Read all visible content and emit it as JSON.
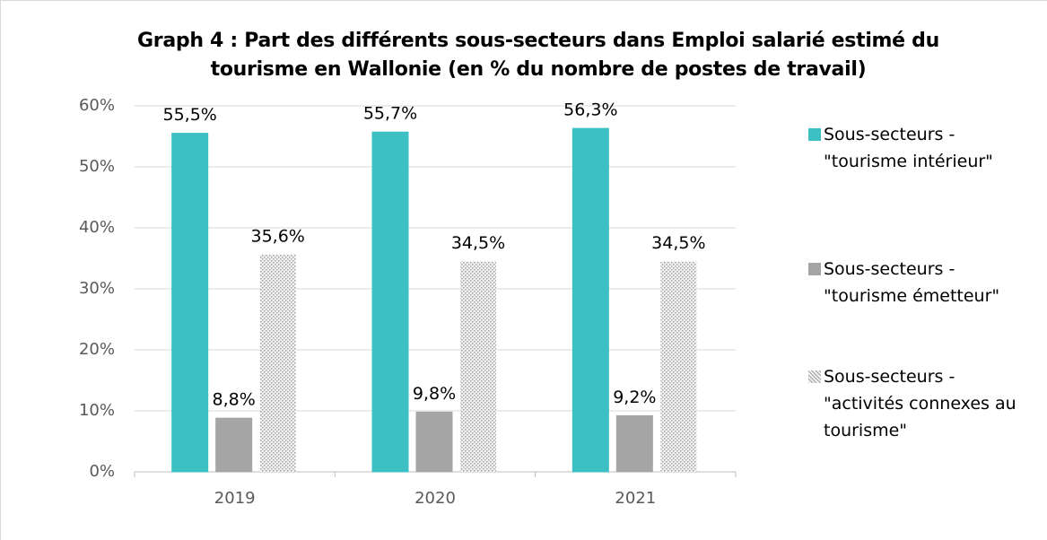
{
  "chart_data": {
    "type": "bar",
    "title": "Graph 4 : Part des différents sous-secteurs dans Emploi salarié estimé du tourisme en Wallonie (en % du nombre de postes de travail)",
    "categories": [
      "2019",
      "2020",
      "2021"
    ],
    "series": [
      {
        "name": "Sous-secteurs - \"tourisme intérieur\"",
        "color": "#3cc0c3",
        "values": [
          55.5,
          55.7,
          56.3
        ],
        "value_labels": [
          "55,5%",
          "55,7%",
          "56,3%"
        ]
      },
      {
        "name": "Sous-secteurs - \"tourisme émetteur\"",
        "color": "#a5a5a5",
        "values": [
          8.8,
          9.8,
          9.2
        ],
        "value_labels": [
          "8,8%",
          "9,8%",
          "9,2%"
        ]
      },
      {
        "name": "Sous-secteurs - \"activités connexes au tourisme\"",
        "color": "#bfbfbf",
        "pattern": "dots",
        "values": [
          35.6,
          34.5,
          34.5
        ],
        "value_labels": [
          "35,6%",
          "34,5%",
          "34,5%"
        ]
      }
    ],
    "ylim": [
      0,
      60
    ],
    "yticks": [
      {
        "value": 0,
        "label": "0%"
      },
      {
        "value": 10,
        "label": "10%"
      },
      {
        "value": 20,
        "label": "20%"
      },
      {
        "value": 30,
        "label": "30%"
      },
      {
        "value": 40,
        "label": "40%"
      },
      {
        "value": 50,
        "label": "50%"
      },
      {
        "value": 60,
        "label": "60%"
      }
    ],
    "grid": true,
    "legend": "right"
  }
}
